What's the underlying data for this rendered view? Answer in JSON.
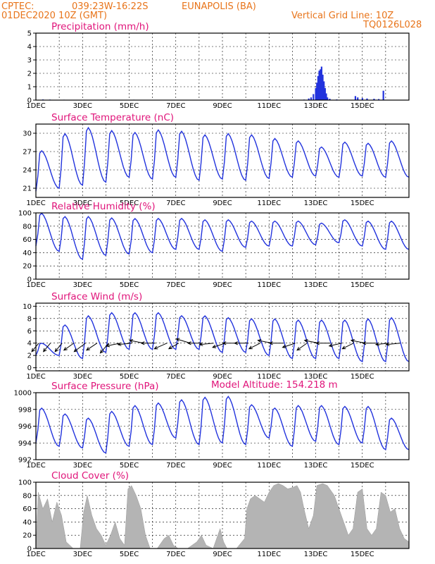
{
  "header": {
    "source": "CPTEC:",
    "coords": "039:23W-16:22S",
    "location": "EUNAPOLIS (BA)",
    "date": "01DEC2020 10Z (GMT)",
    "vertical_grid": "Vertical Grid Line: 10Z",
    "code": "TQ0126L028"
  },
  "model_altitude": "Model Altitude: 154.218 m",
  "colors": {
    "header": "#e8741a",
    "title": "#e0147a",
    "line": "#2233dd",
    "cloud": "#b4b4b4",
    "arrow": "#000000"
  },
  "chart_data": [
    {
      "type": "bar",
      "title": "Precipitation (mm/h)",
      "xlabels": [
        "1DEC",
        "3DEC",
        "5DEC",
        "7DEC",
        "9DEC",
        "11DEC",
        "13DEC",
        "15DEC"
      ],
      "ylim": [
        0,
        5
      ],
      "yticks": [
        0,
        1,
        2,
        3,
        4,
        5
      ],
      "grid": true,
      "bars": [
        [
          0.3,
          0.05
        ],
        [
          0.6,
          0.04
        ],
        [
          1.2,
          0.03
        ],
        [
          2.5,
          0.02
        ],
        [
          4.2,
          0.03
        ],
        [
          11.5,
          0.04
        ],
        [
          11.7,
          0.12
        ],
        [
          11.8,
          0.2
        ],
        [
          11.9,
          0.45
        ],
        [
          12.0,
          0.9
        ],
        [
          12.05,
          1.3
        ],
        [
          12.1,
          1.8
        ],
        [
          12.15,
          2.2
        ],
        [
          12.2,
          2.3
        ],
        [
          12.25,
          2.5
        ],
        [
          12.3,
          1.9
        ],
        [
          12.35,
          1.4
        ],
        [
          12.4,
          0.9
        ],
        [
          12.45,
          0.5
        ],
        [
          12.5,
          0.2
        ],
        [
          12.6,
          0.1
        ],
        [
          12.9,
          0.05
        ],
        [
          13.7,
          0.3
        ],
        [
          13.8,
          0.2
        ],
        [
          14.0,
          0.15
        ],
        [
          14.2,
          0.12
        ],
        [
          14.5,
          0.1
        ],
        [
          14.7,
          0.08
        ],
        [
          14.9,
          0.7
        ]
      ]
    },
    {
      "type": "line",
      "title": "Surface Temperature (nC)",
      "xlabels": [
        "1DEC",
        "3DEC",
        "5DEC",
        "7DEC",
        "9DEC",
        "11DEC",
        "13DEC",
        "15DEC"
      ],
      "ylim": [
        19.5,
        31.5
      ],
      "yticks": [
        21,
        24,
        27,
        30
      ],
      "grid": true,
      "daily_max": [
        27.2,
        30,
        31,
        30.5,
        30.2,
        30.6,
        30.4,
        29.8,
        30,
        29.8,
        29.2,
        28.8,
        27.8,
        28.6,
        28.4,
        28.8
      ],
      "daily_min": [
        20.5,
        21,
        21.5,
        22,
        22.8,
        22.5,
        22.8,
        22.3,
        22.5,
        22.3,
        22.6,
        22.8,
        23,
        22.8,
        23,
        22.8
      ]
    },
    {
      "type": "line",
      "title": "Relative Humidity (%)",
      "xlabels": [
        "1DEC",
        "3DEC",
        "5DEC",
        "7DEC",
        "9DEC",
        "11DEC",
        "13DEC",
        "15DEC"
      ],
      "ylim": [
        0,
        100
      ],
      "yticks": [
        0,
        20,
        40,
        60,
        80,
        100
      ],
      "grid": true,
      "daily_max": [
        100,
        95,
        95,
        93,
        92,
        92,
        92,
        90,
        90,
        88,
        88,
        88,
        85,
        90,
        88,
        88
      ],
      "daily_min": [
        50,
        42,
        30,
        36,
        38,
        40,
        45,
        45,
        42,
        48,
        50,
        50,
        52,
        55,
        50,
        45
      ]
    },
    {
      "type": "line",
      "title": "Surface Wind (m/s)",
      "xlabels": [
        "1DEC",
        "3DEC",
        "5DEC",
        "7DEC",
        "9DEC",
        "11DEC",
        "13DEC",
        "15DEC"
      ],
      "ylim": [
        -0.5,
        10.5
      ],
      "yticks": [
        0,
        2,
        4,
        6,
        8,
        10
      ],
      "grid": true,
      "daily_max": [
        4,
        7,
        8.5,
        9,
        9,
        9,
        8.5,
        8.5,
        8.2,
        8,
        8,
        7.8,
        7.8,
        7.8,
        8,
        8.2
      ],
      "daily_min": [
        2,
        2,
        1.5,
        2.5,
        3,
        3,
        3,
        3,
        2.5,
        2.5,
        2,
        1.5,
        1.5,
        1.5,
        1,
        1
      ],
      "vectors": [
        [
          0.25,
          -10,
          -12
        ],
        [
          1.25,
          -10,
          -12
        ],
        [
          2.25,
          -10,
          -12
        ],
        [
          3.25,
          -14,
          -10
        ],
        [
          4.25,
          -16,
          -12
        ],
        [
          5.25,
          -15,
          -10
        ],
        [
          6.25,
          -12,
          -14
        ],
        [
          7.25,
          -20,
          -4
        ],
        [
          8.25,
          -20,
          -2
        ],
        [
          9.25,
          -20,
          4
        ],
        [
          10.25,
          -20,
          0
        ],
        [
          11.25,
          -18,
          -8
        ],
        [
          12.25,
          -14,
          -8
        ],
        [
          13.25,
          -20,
          6
        ],
        [
          14.25,
          -20,
          0
        ],
        [
          15.25,
          -20,
          -2
        ],
        [
          16.25,
          -18,
          -6
        ],
        [
          17.25,
          -20,
          0
        ],
        [
          18.25,
          -20,
          0
        ],
        [
          19.25,
          -16,
          -8
        ],
        [
          20.25,
          -20,
          4
        ],
        [
          21.25,
          -20,
          0
        ],
        [
          22.25,
          -18,
          -6
        ],
        [
          23.25,
          -14,
          -10
        ],
        [
          24.25,
          -20,
          4
        ],
        [
          25.25,
          -20,
          0
        ],
        [
          26.25,
          -18,
          -4
        ],
        [
          27.25,
          -16,
          -8
        ],
        [
          28.25,
          -20,
          4
        ],
        [
          29.25,
          -20,
          0
        ],
        [
          30.25,
          -18,
          -2
        ],
        [
          31.25,
          -20,
          -2
        ]
      ]
    },
    {
      "type": "line",
      "title": "Surface Pressure (hPa)",
      "xlabels": [
        "1DEC",
        "3DEC",
        "5DEC",
        "7DEC",
        "9DEC",
        "11DEC",
        "13DEC",
        "15DEC"
      ],
      "ylim": [
        992,
        1000
      ],
      "yticks": [
        992,
        994,
        996,
        998,
        1000
      ],
      "grid": true,
      "daily_max": [
        998.2,
        997.5,
        997,
        997.8,
        998.5,
        998.8,
        999.2,
        999.5,
        999.6,
        998.6,
        998.2,
        998.5,
        998.5,
        998.4,
        998.4,
        997
      ],
      "daily_min": [
        994,
        993.6,
        993.4,
        992.8,
        993.6,
        993.8,
        994.6,
        993.8,
        994,
        993.8,
        994.6,
        993.6,
        994.2,
        993.8,
        994,
        993.2
      ]
    },
    {
      "type": "area",
      "title": "Cloud Cover (%)",
      "xlabels": [
        "1DEC",
        "3DEC",
        "5DEC",
        "7DEC",
        "9DEC",
        "11DEC",
        "13DEC",
        "15DEC"
      ],
      "ylim": [
        0,
        100
      ],
      "yticks": [
        0,
        20,
        40,
        60,
        80,
        100
      ],
      "grid": true,
      "profile": [
        [
          0,
          0
        ],
        [
          0.1,
          85
        ],
        [
          0.3,
          60
        ],
        [
          0.5,
          75
        ],
        [
          0.7,
          40
        ],
        [
          0.9,
          70
        ],
        [
          1.1,
          50
        ],
        [
          1.3,
          10
        ],
        [
          1.6,
          0
        ],
        [
          1.9,
          0
        ],
        [
          2.05,
          55
        ],
        [
          2.2,
          80
        ],
        [
          2.4,
          50
        ],
        [
          2.6,
          30
        ],
        [
          2.8,
          20
        ],
        [
          3.0,
          5
        ],
        [
          3.2,
          20
        ],
        [
          3.4,
          40
        ],
        [
          3.6,
          15
        ],
        [
          3.8,
          5
        ],
        [
          3.95,
          90
        ],
        [
          4.1,
          95
        ],
        [
          4.3,
          80
        ],
        [
          4.5,
          60
        ],
        [
          4.7,
          20
        ],
        [
          4.9,
          0
        ],
        [
          5.2,
          0
        ],
        [
          5.5,
          15
        ],
        [
          5.7,
          20
        ],
        [
          5.9,
          5
        ],
        [
          6.1,
          0
        ],
        [
          6.5,
          0
        ],
        [
          6.9,
          10
        ],
        [
          7.1,
          20
        ],
        [
          7.3,
          5
        ],
        [
          7.6,
          0
        ],
        [
          7.9,
          30
        ],
        [
          8.05,
          10
        ],
        [
          8.2,
          0
        ],
        [
          8.6,
          0
        ],
        [
          8.95,
          15
        ],
        [
          9.05,
          60
        ],
        [
          9.2,
          75
        ],
        [
          9.4,
          80
        ],
        [
          9.6,
          75
        ],
        [
          9.8,
          70
        ],
        [
          10.0,
          85
        ],
        [
          10.2,
          95
        ],
        [
          10.4,
          98
        ],
        [
          10.6,
          95
        ],
        [
          10.8,
          90
        ],
        [
          11.0,
          92
        ],
        [
          11.2,
          95
        ],
        [
          11.35,
          85
        ],
        [
          11.5,
          60
        ],
        [
          11.7,
          30
        ],
        [
          11.9,
          50
        ],
        [
          12.05,
          95
        ],
        [
          12.3,
          98
        ],
        [
          12.5,
          95
        ],
        [
          12.8,
          80
        ],
        [
          13.0,
          60
        ],
        [
          13.2,
          40
        ],
        [
          13.4,
          20
        ],
        [
          13.6,
          30
        ],
        [
          13.8,
          85
        ],
        [
          14.0,
          90
        ],
        [
          14.2,
          30
        ],
        [
          14.4,
          20
        ],
        [
          14.6,
          30
        ],
        [
          14.8,
          85
        ],
        [
          15.0,
          80
        ],
        [
          15.2,
          55
        ],
        [
          15.4,
          60
        ],
        [
          15.6,
          30
        ],
        [
          15.8,
          15
        ],
        [
          16,
          10
        ]
      ]
    }
  ]
}
